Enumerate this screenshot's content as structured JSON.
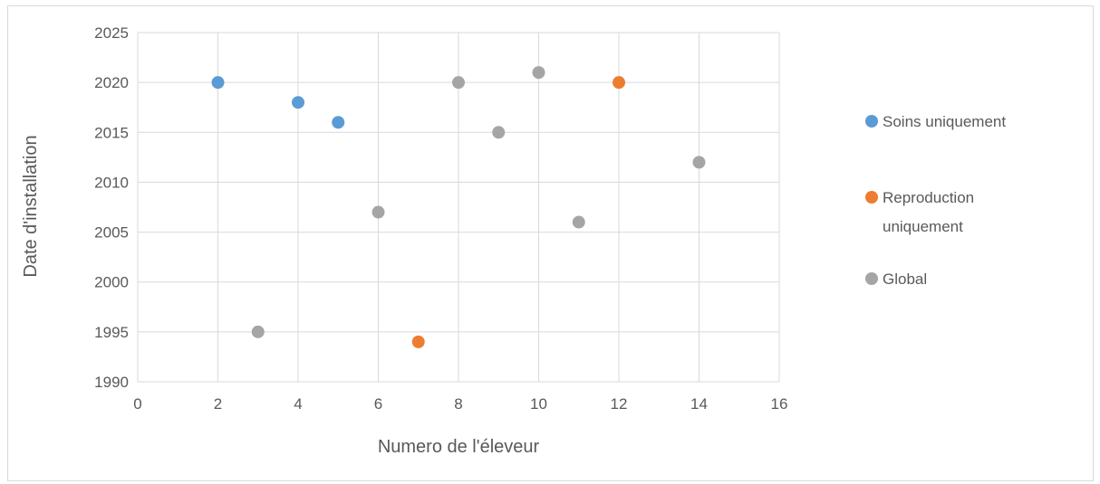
{
  "chart_data": {
    "type": "scatter",
    "title": "",
    "xlabel": "Numero de l'éleveur",
    "ylabel": "Date d'installation",
    "xlim": [
      0,
      16
    ],
    "ylim": [
      1990,
      2025
    ],
    "xticks": [
      0,
      2,
      4,
      6,
      8,
      10,
      12,
      14,
      16
    ],
    "yticks": [
      1990,
      1995,
      2000,
      2005,
      2010,
      2015,
      2020,
      2025
    ],
    "grid": true,
    "legend_position": "right",
    "series": [
      {
        "name": "Soins uniquement",
        "label_lines": [
          "Soins uniquement"
        ],
        "color": "#5b9bd5",
        "points": [
          [
            2,
            2020
          ],
          [
            4,
            2018
          ],
          [
            5,
            2016
          ]
        ]
      },
      {
        "name": "Reproduction uniquement",
        "label_lines": [
          "Reproduction",
          "uniquement"
        ],
        "color": "#ed7d31",
        "points": [
          [
            7,
            1994
          ],
          [
            12,
            2020
          ]
        ]
      },
      {
        "name": "Global",
        "label_lines": [
          "Global"
        ],
        "color": "#a5a5a5",
        "points": [
          [
            3,
            1995
          ],
          [
            6,
            2007
          ],
          [
            8,
            2020
          ],
          [
            9,
            2015
          ],
          [
            10,
            2021
          ],
          [
            11,
            2006
          ],
          [
            14,
            2012
          ]
        ]
      }
    ]
  }
}
